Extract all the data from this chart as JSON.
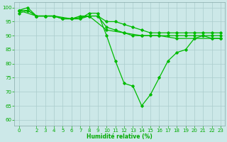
{
  "background_color": "#cce8e8",
  "grid_color": "#aacccc",
  "line_color": "#00bb00",
  "xlabel": "Humidité relative (%)",
  "xlabel_color": "#00aa00",
  "tick_color": "#00aa00",
  "ylim": [
    58,
    102
  ],
  "xlim": [
    -0.5,
    23.5
  ],
  "yticks": [
    60,
    65,
    70,
    75,
    80,
    85,
    90,
    95,
    100
  ],
  "xticks": [
    0,
    2,
    3,
    4,
    5,
    6,
    7,
    8,
    9,
    10,
    11,
    12,
    13,
    14,
    15,
    16,
    17,
    18,
    19,
    20,
    21,
    22,
    23
  ],
  "s1_x": [
    0,
    1,
    2,
    3,
    4,
    5,
    6,
    7,
    8,
    9,
    10,
    11,
    12,
    13,
    14,
    15,
    16,
    17,
    18,
    19,
    20,
    21,
    22,
    23
  ],
  "s1_y": [
    99,
    100,
    97,
    97,
    97,
    96,
    96,
    96,
    98,
    98,
    90,
    81,
    73,
    72,
    65,
    69,
    75,
    81,
    84,
    85,
    89,
    90,
    89,
    89
  ],
  "s2_x": [
    0,
    1,
    2,
    3,
    4,
    5,
    6,
    7,
    8,
    9,
    10,
    11,
    12,
    13,
    14,
    15,
    16,
    17,
    18,
    19,
    20,
    21,
    22,
    23
  ],
  "s2_y": [
    99,
    99,
    97,
    97,
    97,
    96,
    96,
    97,
    97,
    97,
    95,
    95,
    94,
    93,
    92,
    91,
    91,
    91,
    91,
    91,
    91,
    91,
    91,
    91
  ],
  "s3_x": [
    0,
    1,
    2,
    3,
    4,
    5,
    6,
    7,
    8,
    9,
    10,
    11,
    12,
    13,
    14,
    15,
    16,
    17,
    18,
    19,
    20,
    21,
    22,
    23
  ],
  "s3_y": [
    98,
    99,
    97,
    97,
    97,
    96,
    96,
    96,
    97,
    97,
    93,
    92,
    91,
    90,
    90,
    90,
    90,
    90,
    90,
    90,
    90,
    90,
    90,
    90
  ],
  "s4_x": [
    0,
    2,
    4,
    6,
    8,
    10,
    12,
    14,
    16,
    18,
    20,
    22,
    23
  ],
  "s4_y": [
    99,
    97,
    97,
    96,
    97,
    92,
    91,
    90,
    90,
    89,
    89,
    89,
    89
  ]
}
